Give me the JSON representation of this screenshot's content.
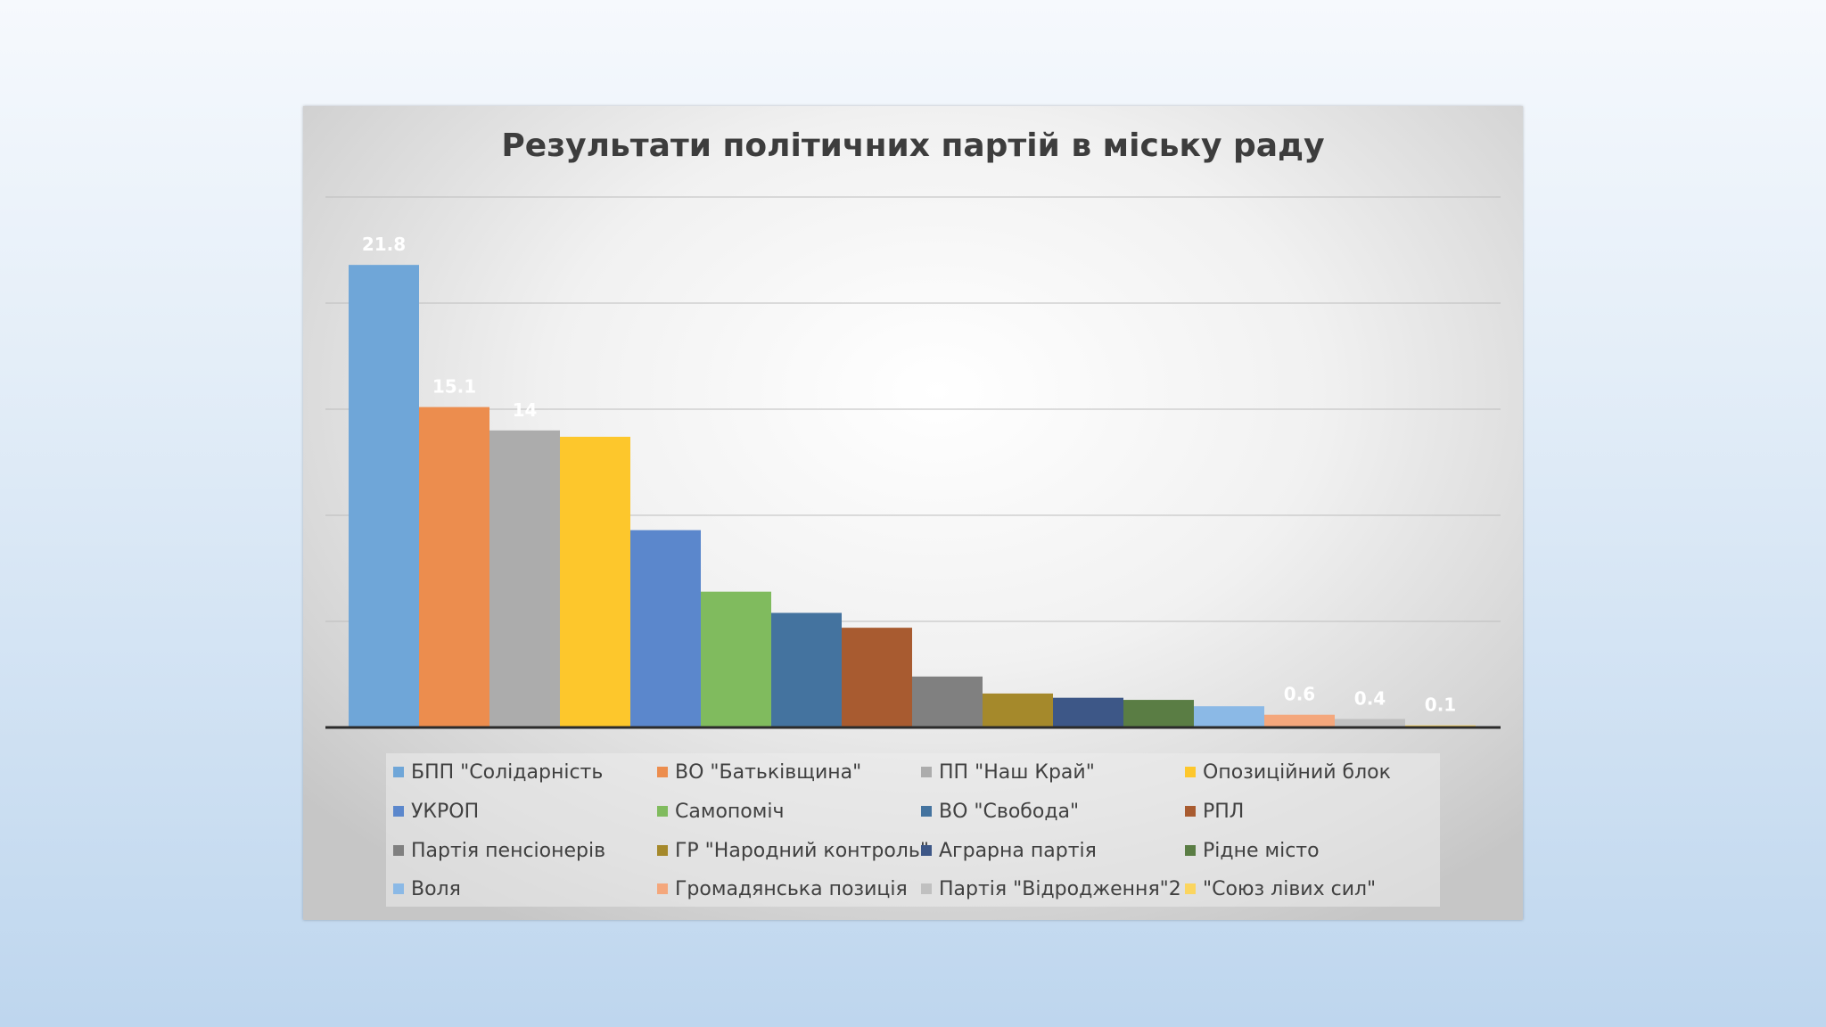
{
  "chart_data": {
    "type": "bar",
    "title": "Результати політичних партій в міську раду",
    "categories": [
      "БПП \"Солідарність",
      "ВО \"Батьківщина\"",
      "ПП \"Наш Край\"",
      "Опозиційний блок",
      "УКРОП",
      "Самопоміч",
      "ВО \"Свобода\"",
      "РПЛ",
      "Партія пенсіонерів",
      "ГР \"Народний контроль\"",
      "Аграрна партія",
      "Рідне місто",
      "Воля",
      "Громадянська позиція",
      "Партія \"Відродження\"2",
      "\"Союз лівих сил\""
    ],
    "values": [
      21.8,
      15.1,
      14,
      13.7,
      9.3,
      6.4,
      5.4,
      4.7,
      2.4,
      1.6,
      1.4,
      1.3,
      1,
      0.6,
      0.4,
      0.1
    ],
    "data_labels": [
      "21.8",
      "15.1",
      "14",
      "",
      "",
      "",
      "",
      "",
      "",
      "",
      "",
      "",
      "",
      "0.6",
      "0.4",
      "0.1"
    ],
    "colors": [
      "#6fa6d8",
      "#ec8d4e",
      "#acacac",
      "#fdc72c",
      "#5b87cc",
      "#80bb5e",
      "#44739f",
      "#a85b30",
      "#808080",
      "#a5892b",
      "#3d5787",
      "#5a7d44",
      "#8bb9e6",
      "#f4a77c",
      "#c0c0c0",
      "#fbd55f"
    ],
    "ylim": [
      0,
      25
    ],
    "grid": true,
    "legend_position": "bottom"
  }
}
